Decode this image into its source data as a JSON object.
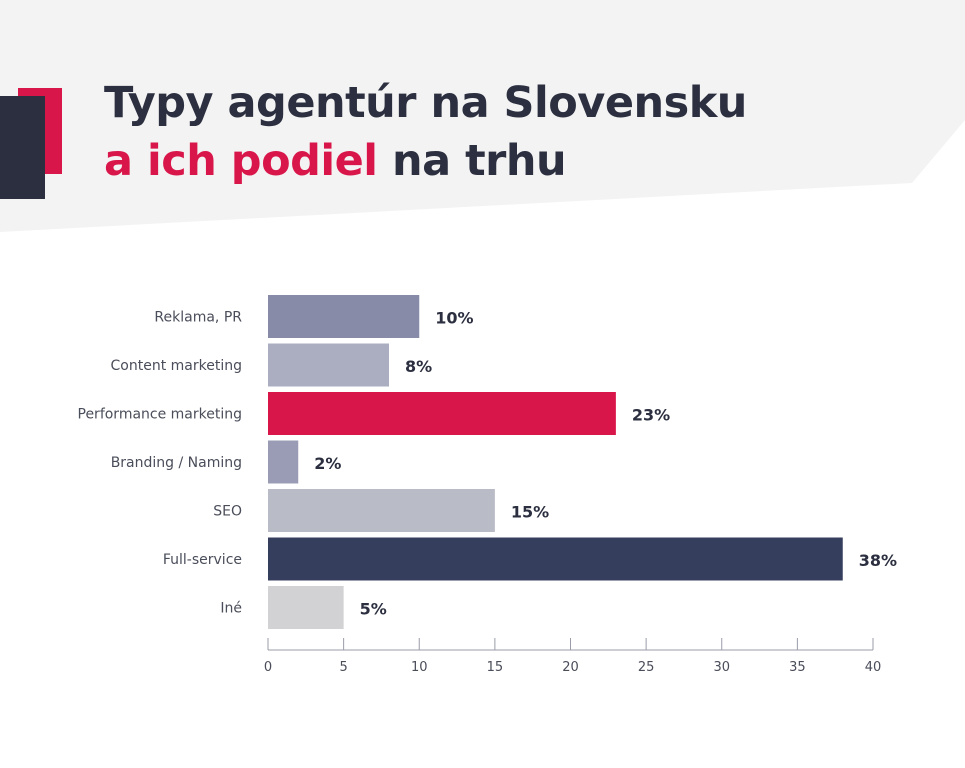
{
  "header": {
    "title_line1": "Typy agentúr na Slovensku",
    "title_highlight": "a ich podiel",
    "title_rest": " na trhu",
    "highlight_color": "#d9164a",
    "text_color": "#2b2f3f"
  },
  "chart_data": {
    "type": "bar",
    "orientation": "horizontal",
    "title": "Typy agentúr na Slovensku a ich podiel na trhu",
    "categories": [
      "Reklama, PR",
      "Content marketing",
      "Performance marketing",
      "Branding / Naming",
      "SEO",
      "Full-service",
      "Iné"
    ],
    "values": [
      10,
      8,
      23,
      2,
      15,
      38,
      5
    ],
    "value_labels": [
      "10%",
      "8%",
      "23%",
      "2%",
      "15%",
      "38%",
      "5%"
    ],
    "colors": [
      "#878ba8",
      "#aaaec0",
      "#d9164a",
      "#9a9cb5",
      "#b9bcc6",
      "#363e5e",
      "#d2d2d4"
    ],
    "xlim": [
      0,
      40
    ],
    "x_ticks": [
      0,
      5,
      10,
      15,
      20,
      25,
      30,
      35,
      40
    ],
    "grid": false,
    "legend": "none"
  }
}
